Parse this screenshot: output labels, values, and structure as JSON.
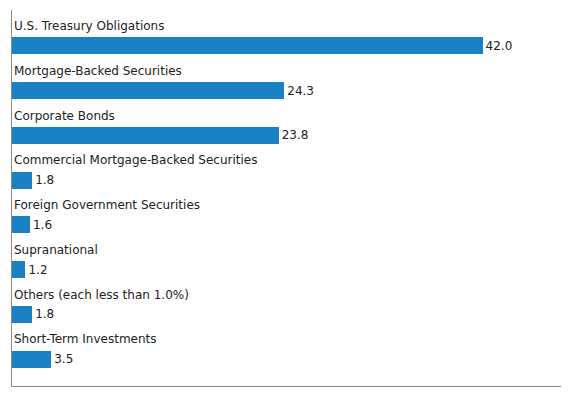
{
  "chart_data": {
    "type": "bar",
    "orientation": "horizontal",
    "categories": [
      "Short-Term Investments",
      "Others (each less than 1.0%)",
      "Supranational",
      "Foreign Government Securities",
      "Commercial Mortgage-Backed Securities",
      "Corporate Bonds",
      "Mortgage-Backed Securities",
      "U.S. Treasury Obligations"
    ],
    "values": [
      3.5,
      1.8,
      1.2,
      1.6,
      1.8,
      23.8,
      24.3,
      42.0
    ],
    "value_labels": [
      "3.5",
      "1.8",
      "1.2",
      "1.6",
      "1.8",
      "23.8",
      "24.3",
      "42.0"
    ],
    "color": "#1a82c4",
    "data_labels": true,
    "tick_labels": false,
    "grid": false,
    "xlim": [
      0,
      49
    ],
    "xticks": []
  }
}
